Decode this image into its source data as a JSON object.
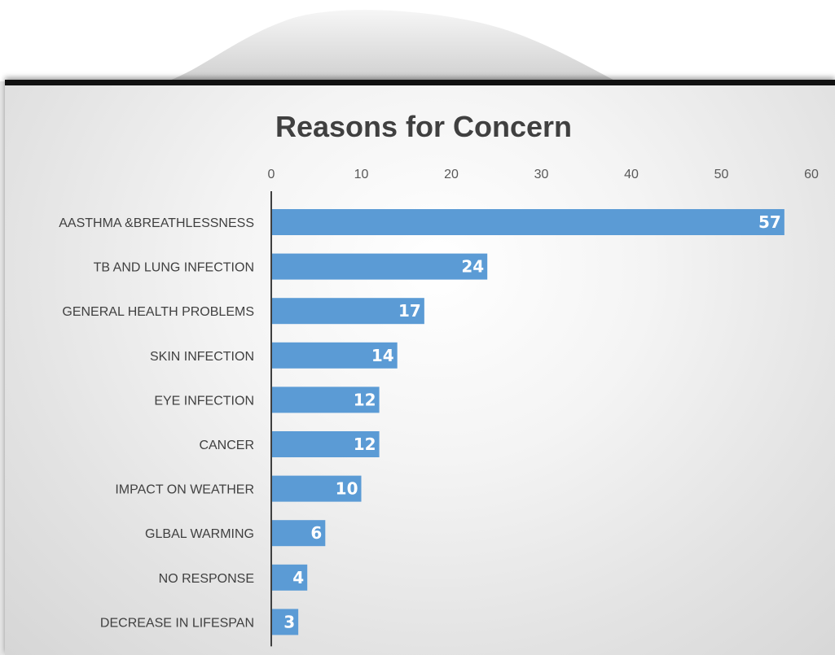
{
  "chart_data": {
    "type": "bar",
    "orientation": "horizontal",
    "title": "Reasons for Concern",
    "xlabel": "",
    "ylabel": "",
    "xlim": [
      0,
      60
    ],
    "x_ticks": [
      "0",
      "10",
      "20",
      "30",
      "40",
      "50",
      "60"
    ],
    "x_axis_position": "top",
    "grid": false,
    "legend": "none",
    "bar_color": "#5B9BD5",
    "categories": [
      "AASTHMA &BREATHLESSNESS",
      "TB AND LUNG INFECTION",
      "GENERAL HEALTH PROBLEMS",
      "SKIN INFECTION",
      "EYE INFECTION",
      "CANCER",
      "IMPACT ON WEATHER",
      "GLBAL WARMING",
      "NO RESPONSE",
      "DECREASE IN LIFESPAN"
    ],
    "values": [
      57,
      24,
      17,
      14,
      12,
      12,
      10,
      6,
      4,
      3
    ],
    "data_labels": [
      "57",
      "24",
      "17",
      "14",
      "12",
      "12",
      "10",
      "6",
      "4",
      "3"
    ]
  }
}
